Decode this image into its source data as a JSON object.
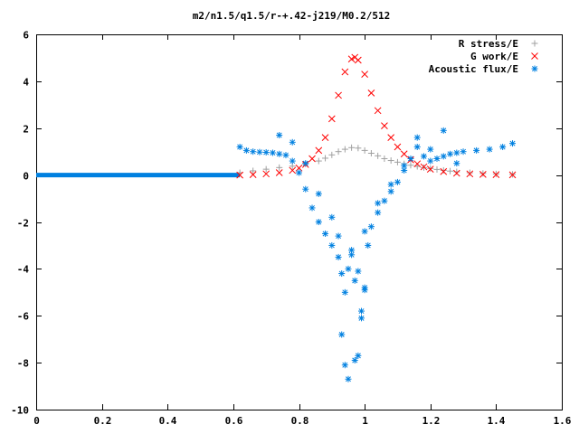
{
  "chart_data": {
    "type": "scatter",
    "title": "m2/n1.5/q1.5/r-+.42-j219/M0.2/512",
    "xlabel": "",
    "ylabel": "",
    "xlim": [
      0,
      1.6
    ],
    "ylim": [
      -10,
      6
    ],
    "x_ticks": [
      "0",
      "0.2",
      "0.4",
      "0.6",
      "0.8",
      "1",
      "1.2",
      "1.4",
      "1.6"
    ],
    "y_ticks": [
      "6",
      "4",
      "2",
      "0",
      "-2",
      "-4",
      "-6",
      "-8",
      "-10"
    ],
    "grid": false,
    "legend": "top-right",
    "series": [
      {
        "name": "R stress/E",
        "marker": "+",
        "color": "#a0a0a0",
        "x": [
          0.62,
          0.66,
          0.7,
          0.74,
          0.78,
          0.82,
          0.86,
          0.88,
          0.9,
          0.92,
          0.94,
          0.96,
          0.98,
          1.0,
          1.02,
          1.04,
          1.06,
          1.08,
          1.1,
          1.12,
          1.14,
          1.16,
          1.18,
          1.2,
          1.22,
          1.24,
          1.26,
          1.28,
          1.32,
          1.36,
          1.4,
          1.45
        ],
        "y": [
          0.1,
          0.18,
          0.25,
          0.32,
          0.38,
          0.48,
          0.6,
          0.72,
          0.86,
          1.0,
          1.1,
          1.17,
          1.15,
          1.05,
          0.93,
          0.82,
          0.7,
          0.62,
          0.55,
          0.48,
          0.42,
          0.37,
          0.32,
          0.28,
          0.24,
          0.2,
          0.17,
          0.14,
          0.1,
          0.07,
          0.05,
          0.03
        ]
      },
      {
        "name": "G work/E",
        "marker": "x",
        "color": "#ff0000",
        "x": [
          0.62,
          0.66,
          0.7,
          0.74,
          0.78,
          0.8,
          0.82,
          0.84,
          0.86,
          0.88,
          0.9,
          0.92,
          0.94,
          0.96,
          0.97,
          0.98,
          1.0,
          1.02,
          1.04,
          1.06,
          1.08,
          1.1,
          1.12,
          1.14,
          1.16,
          1.18,
          1.2,
          1.24,
          1.28,
          1.32,
          1.36,
          1.4,
          1.45
        ],
        "y": [
          0.0,
          0.02,
          0.05,
          0.1,
          0.2,
          0.3,
          0.45,
          0.7,
          1.05,
          1.6,
          2.4,
          3.4,
          4.4,
          4.95,
          5.02,
          4.9,
          4.3,
          3.5,
          2.75,
          2.1,
          1.6,
          1.2,
          0.9,
          0.65,
          0.48,
          0.35,
          0.25,
          0.15,
          0.08,
          0.05,
          0.03,
          0.02,
          0.01
        ]
      },
      {
        "name": "Acoustic flux/E",
        "marker": "*",
        "color": "#0080e0",
        "x": [
          0.62,
          0.64,
          0.66,
          0.68,
          0.7,
          0.72,
          0.74,
          0.76,
          0.78,
          0.8,
          0.82,
          0.84,
          0.86,
          0.88,
          0.9,
          0.92,
          0.93,
          0.94,
          0.95,
          0.96,
          0.97,
          0.98,
          0.99,
          1.0,
          1.01,
          1.02,
          1.04,
          1.06,
          1.08,
          1.1,
          1.12,
          1.14,
          1.16,
          1.18,
          1.2,
          1.22,
          1.24,
          1.26,
          1.28,
          1.3,
          1.34,
          1.38,
          1.42,
          1.45,
          0.74,
          0.78,
          0.82,
          0.86,
          0.9,
          0.92,
          0.96,
          0.98,
          1.0,
          1.04,
          1.08,
          1.12,
          1.16,
          1.2,
          1.24,
          1.28,
          0.94,
          0.95,
          0.97,
          0.99,
          1.0,
          0.93
        ],
        "y": [
          1.2,
          1.05,
          1.0,
          0.98,
          0.97,
          0.95,
          0.9,
          0.85,
          0.6,
          0.1,
          -0.6,
          -1.4,
          -2.0,
          -2.5,
          -3.0,
          -3.5,
          -4.2,
          -5.0,
          -4.0,
          -3.2,
          -4.5,
          -7.7,
          -5.8,
          -4.9,
          -3.0,
          -2.2,
          -1.6,
          -1.1,
          -0.7,
          -0.3,
          0.2,
          0.7,
          1.2,
          0.8,
          0.6,
          0.7,
          0.8,
          0.9,
          0.95,
          1.0,
          1.05,
          1.1,
          1.2,
          1.35,
          1.7,
          1.4,
          0.5,
          -0.8,
          -1.8,
          -2.6,
          -3.4,
          -4.1,
          -2.4,
          -1.2,
          -0.4,
          0.4,
          1.6,
          1.1,
          1.9,
          0.5,
          -8.1,
          -8.7,
          -7.9,
          -6.1,
          -4.8,
          -6.8
        ]
      }
    ]
  }
}
